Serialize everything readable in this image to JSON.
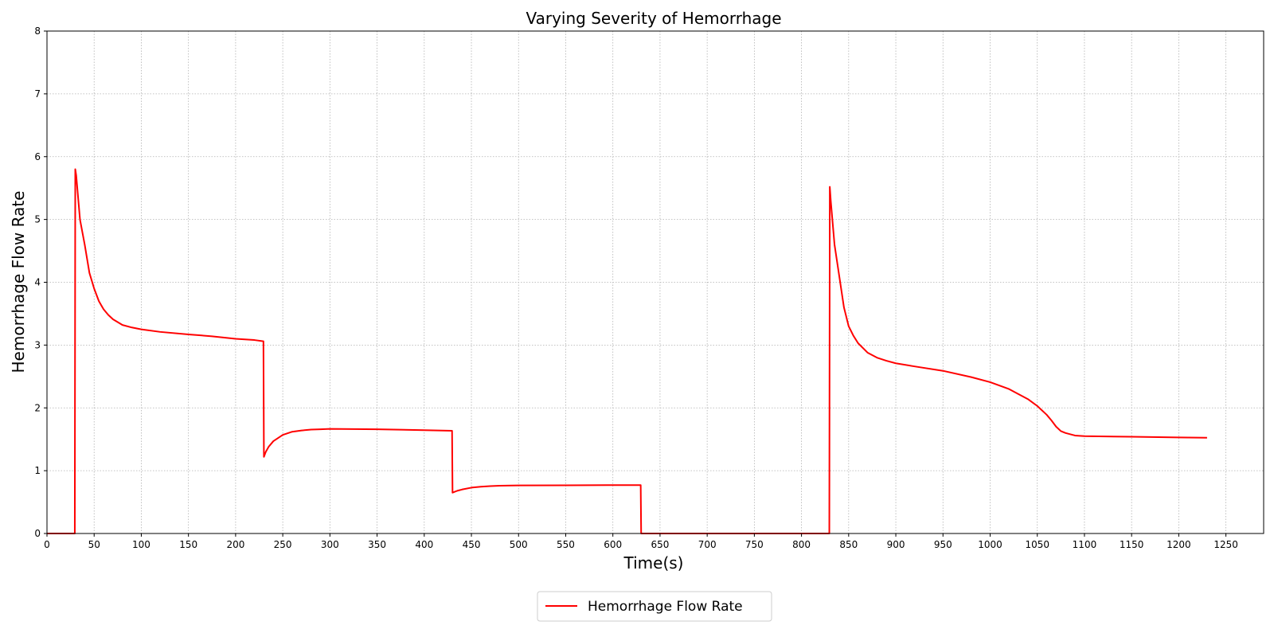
{
  "chart_data": {
    "type": "line",
    "title": "Varying Severity of Hemorrhage",
    "xlabel": "Time(s)",
    "ylabel": "Hemorrhage Flow Rate",
    "xlim": [
      0,
      1290
    ],
    "ylim": [
      0,
      8
    ],
    "xticks": [
      0,
      50,
      100,
      150,
      200,
      250,
      300,
      350,
      400,
      450,
      500,
      550,
      600,
      650,
      700,
      750,
      800,
      850,
      900,
      950,
      1000,
      1050,
      1100,
      1150,
      1200,
      1250
    ],
    "yticks": [
      0,
      1,
      2,
      3,
      4,
      5,
      6,
      7,
      8
    ],
    "grid": true,
    "legend_position": "bottom-center",
    "color": "#ff0000",
    "series": [
      {
        "name": "Hemorrhage Flow Rate",
        "x": [
          0,
          29.5,
          30,
          31,
          35,
          40,
          45,
          50,
          55,
          60,
          65,
          70,
          80,
          90,
          100,
          120,
          150,
          175,
          200,
          220,
          229.5,
          230,
          232,
          235,
          240,
          250,
          260,
          270,
          280,
          290,
          300,
          350,
          400,
          429.5,
          430,
          435,
          440,
          450,
          460,
          470,
          480,
          500,
          550,
          600,
          629.5,
          630,
          650,
          700,
          750,
          800,
          829.5,
          830,
          831,
          835,
          840,
          845,
          850,
          855,
          860,
          870,
          880,
          890,
          900,
          920,
          950,
          980,
          1000,
          1020,
          1040,
          1050,
          1060,
          1065,
          1070,
          1075,
          1080,
          1090,
          1100,
          1150,
          1200,
          1230
        ],
        "y": [
          0,
          0,
          5.8,
          5.7,
          5.0,
          4.6,
          4.15,
          3.9,
          3.7,
          3.57,
          3.48,
          3.41,
          3.32,
          3.28,
          3.25,
          3.21,
          3.17,
          3.14,
          3.1,
          3.08,
          3.06,
          1.22,
          1.3,
          1.38,
          1.47,
          1.57,
          1.62,
          1.64,
          1.655,
          1.66,
          1.665,
          1.66,
          1.645,
          1.635,
          0.65,
          0.68,
          0.7,
          0.73,
          0.745,
          0.755,
          0.76,
          0.765,
          0.767,
          0.77,
          0.77,
          0,
          0,
          0,
          0,
          0,
          0,
          5.52,
          5.3,
          4.6,
          4.1,
          3.6,
          3.3,
          3.15,
          3.03,
          2.88,
          2.8,
          2.75,
          2.71,
          2.66,
          2.59,
          2.49,
          2.41,
          2.3,
          2.14,
          2.03,
          1.89,
          1.8,
          1.7,
          1.63,
          1.6,
          1.56,
          1.55,
          1.54,
          1.53,
          1.525
        ]
      }
    ]
  }
}
